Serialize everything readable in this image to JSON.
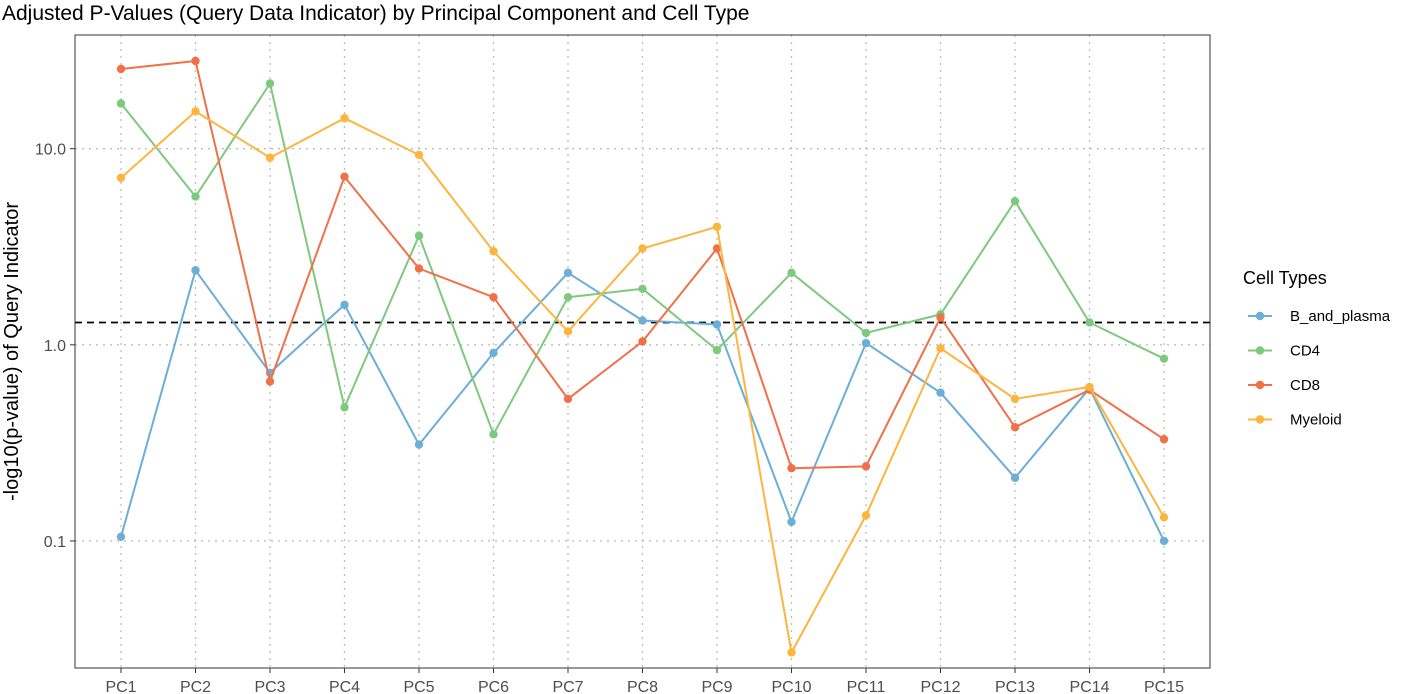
{
  "chart_data": {
    "type": "line",
    "title": "Adjusted P-Values (Query Data Indicator) by Principal Component and Cell Type",
    "xlabel": "",
    "ylabel": "-log10(p-value) of Query Indicator",
    "y_scale": "log10",
    "ylim": [
      0.0225,
      38
    ],
    "yticks": [
      0.1,
      1.0,
      10.0
    ],
    "ytick_labels": [
      "0.1",
      "1.0",
      "10.0"
    ],
    "categories": [
      "PC1",
      "PC2",
      "PC3",
      "PC4",
      "PC5",
      "PC6",
      "PC7",
      "PC8",
      "PC9",
      "PC10",
      "PC11",
      "PC12",
      "PC13",
      "PC14",
      "PC15"
    ],
    "threshold": 1.3,
    "threshold_style": "dashed",
    "grid": true,
    "grid_style": "dotted",
    "legend_title": "Cell Types",
    "legend_position": "right",
    "series": [
      {
        "name": "B_and_plasma",
        "color": "#6BAED6",
        "values": [
          0.105,
          2.4,
          0.72,
          1.6,
          0.31,
          0.91,
          2.33,
          1.33,
          1.27,
          0.125,
          1.02,
          0.57,
          0.21,
          0.6,
          0.1
        ]
      },
      {
        "name": "CD4",
        "color": "#7FC97F",
        "values": [
          17.0,
          5.7,
          21.5,
          0.48,
          3.6,
          0.35,
          1.75,
          1.93,
          0.94,
          2.33,
          1.15,
          1.43,
          5.4,
          1.3,
          0.85
        ]
      },
      {
        "name": "CD8",
        "color": "#F07049",
        "values": [
          25.5,
          28.0,
          0.65,
          7.2,
          2.45,
          1.75,
          0.53,
          1.04,
          3.1,
          0.235,
          0.24,
          1.38,
          0.38,
          0.59,
          0.33
        ]
      },
      {
        "name": "Myeloid",
        "color": "#FDB53D",
        "values": [
          7.1,
          15.5,
          9.0,
          14.3,
          9.3,
          3.0,
          1.17,
          3.1,
          4.0,
          0.027,
          0.135,
          0.96,
          0.53,
          0.61,
          0.132
        ]
      }
    ]
  }
}
